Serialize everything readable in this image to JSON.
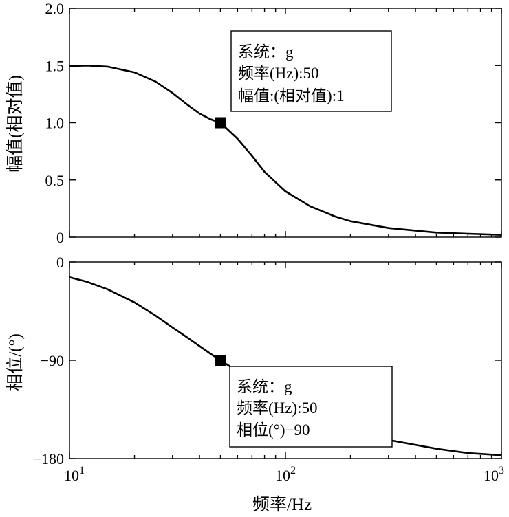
{
  "chart_data": [
    {
      "type": "line",
      "xscale": "log",
      "xlim": [
        10,
        1000
      ],
      "ylim": [
        0,
        2.0
      ],
      "ylabel": "幅值(相对值)",
      "yticks": [
        0,
        0.5,
        1.0,
        1.5,
        2.0
      ],
      "ytick_labels": [
        "0",
        "0.5",
        "1.0",
        "1.5",
        "2.0"
      ],
      "grid": false,
      "series": [
        {
          "x": [
            10,
            12,
            15,
            20,
            25,
            30,
            35,
            40,
            45,
            50,
            60,
            70,
            80,
            100,
            130,
            170,
            200,
            300,
            500,
            700,
            1000
          ],
          "y": [
            1.495,
            1.5,
            1.49,
            1.44,
            1.36,
            1.26,
            1.16,
            1.08,
            1.03,
            1.0,
            0.86,
            0.71,
            0.57,
            0.4,
            0.27,
            0.18,
            0.14,
            0.08,
            0.04,
            0.03,
            0.02
          ]
        }
      ],
      "marker": {
        "x": 50,
        "y": 1.0
      },
      "annotation": [
        "系统：g",
        "频率(Hz):50",
        "幅值:(相对值):1"
      ]
    },
    {
      "type": "line",
      "xscale": "log",
      "xlim": [
        10,
        1000
      ],
      "ylim": [
        -180,
        0
      ],
      "ylabel": "相位/(°)",
      "xlabel": "频率/Hz",
      "yticks": [
        0,
        -90,
        -180
      ],
      "ytick_labels": [
        "0",
        "−90",
        "−180"
      ],
      "xticks": [
        10,
        100,
        1000
      ],
      "xtick_labels": [
        {
          "base": "10",
          "exp": "1"
        },
        {
          "base": "10",
          "exp": "2"
        },
        {
          "base": "10",
          "exp": "3"
        }
      ],
      "grid": false,
      "series": [
        {
          "x": [
            10,
            12,
            15,
            20,
            25,
            30,
            35,
            40,
            45,
            50,
            60,
            70,
            80,
            100,
            150,
            200,
            300,
            500,
            700,
            1000
          ],
          "y": [
            -14,
            -18,
            -25,
            -37,
            -49,
            -60,
            -69,
            -77,
            -84,
            -90,
            -100,
            -109,
            -116,
            -127,
            -143,
            -153,
            -163,
            -171,
            -175,
            -177
          ]
        }
      ],
      "marker": {
        "x": 50,
        "y": -90
      },
      "annotation": [
        "系统：g",
        "频率(Hz):50",
        "相位(°)−90"
      ]
    }
  ]
}
